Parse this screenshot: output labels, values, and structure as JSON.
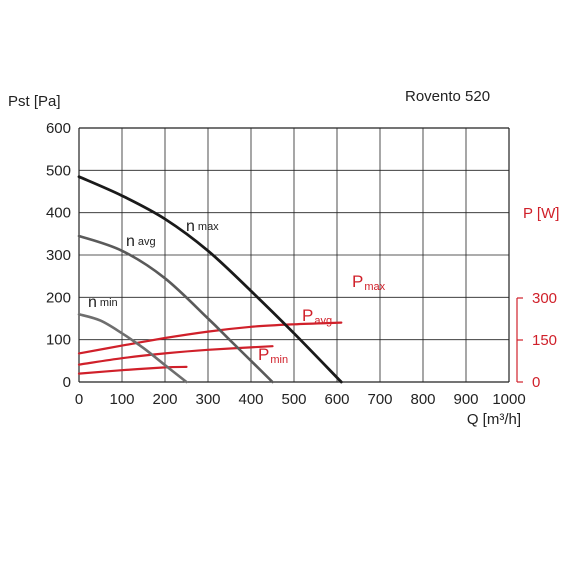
{
  "chart_data": {
    "type": "line",
    "title": "Rovento 520",
    "xlabel": "Q [m³/h]",
    "ylabel": "Pst [Pa]",
    "y2label": "P [W]",
    "xlim": [
      0,
      1000
    ],
    "ylim": [
      0,
      600
    ],
    "y2lim": [
      0,
      300
    ],
    "xticks": [
      0,
      100,
      200,
      300,
      400,
      500,
      600,
      700,
      800,
      900,
      1000
    ],
    "yticks": [
      0,
      100,
      200,
      300,
      400,
      500,
      600
    ],
    "y2ticks": [
      0,
      150,
      300
    ],
    "grid": true,
    "colors": {
      "pressure": "#1a1a1a",
      "pressure_mid": "#5a5a5a",
      "pressure_low": "#6e6e6e",
      "power": "#d0202a",
      "grid": "#222222"
    },
    "pressure_series": [
      {
        "label_main": "n",
        "label_sub": "max",
        "color": "#1a1a1a",
        "x": [
          0,
          100,
          200,
          300,
          400,
          500,
          610
        ],
        "y": [
          485,
          440,
          385,
          310,
          215,
          115,
          0
        ]
      },
      {
        "label_main": "n",
        "label_sub": "avg",
        "color": "#5a5a5a",
        "x": [
          0,
          100,
          200,
          300,
          350,
          400,
          450
        ],
        "y": [
          345,
          310,
          245,
          150,
          100,
          50,
          0
        ]
      },
      {
        "label_main": "n",
        "label_sub": "min",
        "color": "#6e6e6e",
        "x": [
          0,
          50,
          100,
          150,
          200,
          250
        ],
        "y": [
          160,
          145,
          115,
          80,
          40,
          0
        ]
      }
    ],
    "power_series": [
      {
        "label_main": "P",
        "label_sub": "max",
        "color": "#d0202a",
        "x": [
          0,
          100,
          200,
          300,
          400,
          500,
          610
        ],
        "y_power": [
          102,
          130,
          157,
          180,
          197,
          206,
          212
        ]
      },
      {
        "label_main": "P",
        "label_sub": "avg",
        "color": "#d0202a",
        "x": [
          0,
          100,
          200,
          300,
          450
        ],
        "y_power": [
          62,
          85,
          102,
          115,
          128
        ]
      },
      {
        "label_main": "P",
        "label_sub": "min",
        "color": "#d0202a",
        "x": [
          0,
          100,
          200,
          250
        ],
        "y_power": [
          30,
          42,
          52,
          54
        ]
      }
    ]
  }
}
